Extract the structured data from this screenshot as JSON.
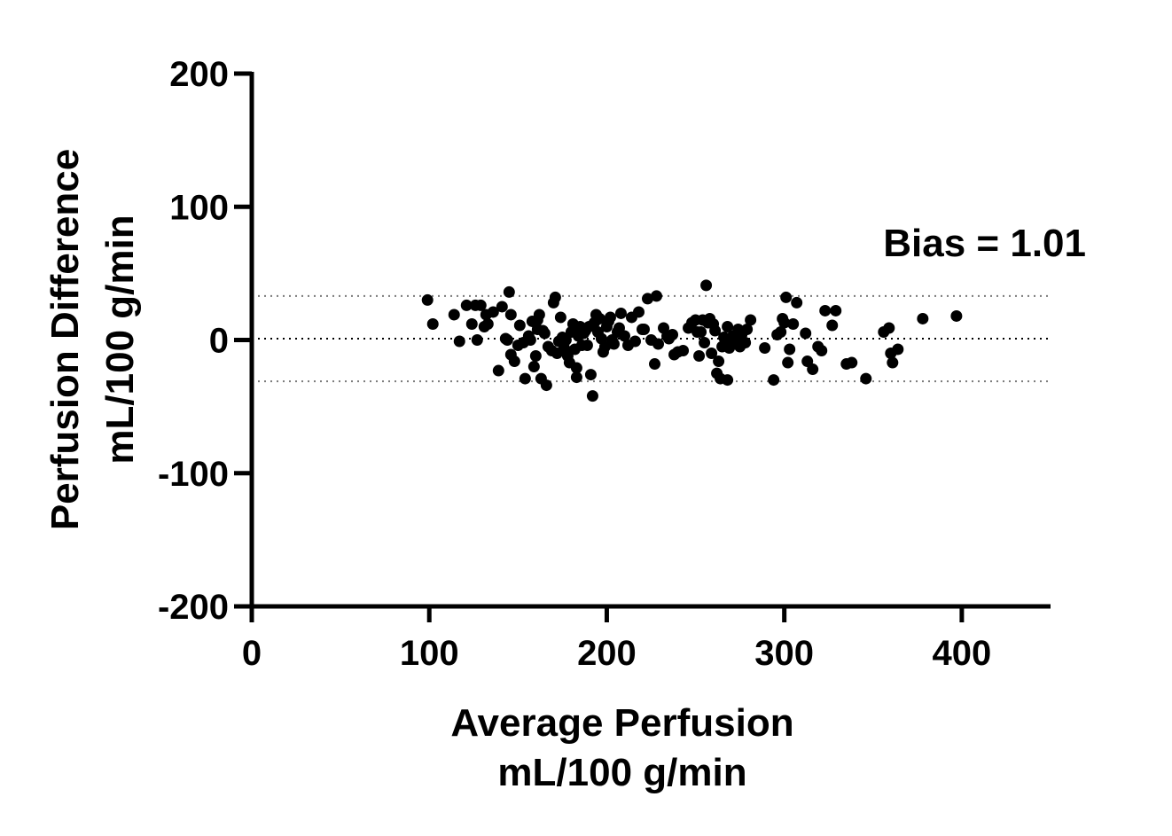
{
  "chart_data": {
    "type": "scatter",
    "xlabel_lines": [
      "Average Perfusion",
      "mL/100 g/min"
    ],
    "ylabel_lines": [
      "Perfusion Difference",
      "mL/100 g/min"
    ],
    "xlim": [
      0,
      450
    ],
    "ylim": [
      -200,
      200
    ],
    "x_ticks": [
      0,
      100,
      200,
      300,
      400
    ],
    "y_ticks": [
      200,
      100,
      0,
      -100,
      -200
    ],
    "x_tick_labels": [
      "0",
      "100",
      "200",
      "300",
      "400"
    ],
    "y_tick_labels": [
      "200",
      "100",
      "0",
      "-100",
      "-200"
    ],
    "grid": false,
    "annotation": "Bias = 1.01",
    "reference_lines": {
      "bias": 1.01,
      "upper_loa": 33,
      "lower_loa": -31
    },
    "points": [
      [
        99,
        30
      ],
      [
        102,
        12
      ],
      [
        114,
        19
      ],
      [
        117,
        -1
      ],
      [
        121,
        26
      ],
      [
        124,
        12
      ],
      [
        126,
        26
      ],
      [
        127,
        0
      ],
      [
        129,
        26
      ],
      [
        131,
        10
      ],
      [
        132,
        19
      ],
      [
        133,
        12
      ],
      [
        136,
        21
      ],
      [
        139,
        -23
      ],
      [
        141,
        25
      ],
      [
        143,
        1
      ],
      [
        144,
        0
      ],
      [
        145,
        36
      ],
      [
        146,
        19
      ],
      [
        146,
        -11
      ],
      [
        148,
        -16
      ],
      [
        150,
        -4
      ],
      [
        151,
        11
      ],
      [
        153,
        -2
      ],
      [
        154,
        -29
      ],
      [
        156,
        3
      ],
      [
        157,
        0
      ],
      [
        158,
        14
      ],
      [
        159,
        -20
      ],
      [
        160,
        -12
      ],
      [
        161,
        8
      ],
      [
        161,
        15
      ],
      [
        162,
        19
      ],
      [
        163,
        -29
      ],
      [
        164,
        7
      ],
      [
        165,
        5
      ],
      [
        166,
        -34
      ],
      [
        167,
        -5
      ],
      [
        169,
        -8
      ],
      [
        170,
        28
      ],
      [
        171,
        32
      ],
      [
        172,
        -10
      ],
      [
        173,
        -1
      ],
      [
        174,
        17
      ],
      [
        175,
        2
      ],
      [
        176,
        -6
      ],
      [
        177,
        0
      ],
      [
        178,
        -12
      ],
      [
        179,
        -17
      ],
      [
        180,
        6
      ],
      [
        181,
        12
      ],
      [
        182,
        -7
      ],
      [
        183,
        -21
      ],
      [
        183,
        -28
      ],
      [
        184,
        3
      ],
      [
        185,
        10
      ],
      [
        186,
        -4
      ],
      [
        187,
        5
      ],
      [
        188,
        7
      ],
      [
        189,
        -4
      ],
      [
        190,
        10
      ],
      [
        191,
        -26
      ],
      [
        192,
        -42
      ],
      [
        193,
        13
      ],
      [
        194,
        19
      ],
      [
        195,
        6
      ],
      [
        196,
        16
      ],
      [
        197,
        1
      ],
      [
        198,
        -9
      ],
      [
        199,
        -5
      ],
      [
        200,
        10
      ],
      [
        201,
        14
      ],
      [
        202,
        17
      ],
      [
        203,
        0
      ],
      [
        204,
        -3
      ],
      [
        206,
        6
      ],
      [
        207,
        9
      ],
      [
        208,
        20
      ],
      [
        210,
        3
      ],
      [
        212,
        -4
      ],
      [
        214,
        17
      ],
      [
        216,
        -1
      ],
      [
        218,
        21
      ],
      [
        220,
        8
      ],
      [
        221,
        8
      ],
      [
        223,
        31
      ],
      [
        225,
        0
      ],
      [
        227,
        -18
      ],
      [
        228,
        33
      ],
      [
        229,
        -3
      ],
      [
        232,
        9
      ],
      [
        234,
        3
      ],
      [
        235,
        1
      ],
      [
        237,
        4
      ],
      [
        238,
        -11
      ],
      [
        240,
        -9
      ],
      [
        243,
        -8
      ],
      [
        246,
        9
      ],
      [
        248,
        13
      ],
      [
        250,
        15
      ],
      [
        251,
        6
      ],
      [
        252,
        -12
      ],
      [
        253,
        6
      ],
      [
        254,
        15
      ],
      [
        255,
        -2
      ],
      [
        256,
        41
      ],
      [
        257,
        13
      ],
      [
        258,
        16
      ],
      [
        259,
        -10
      ],
      [
        260,
        12
      ],
      [
        261,
        7
      ],
      [
        262,
        -25
      ],
      [
        263,
        -16
      ],
      [
        264,
        -29
      ],
      [
        265,
        -5
      ],
      [
        266,
        2
      ],
      [
        267,
        -1
      ],
      [
        268,
        -30
      ],
      [
        268,
        10
      ],
      [
        269,
        -6
      ],
      [
        270,
        0
      ],
      [
        271,
        3
      ],
      [
        272,
        0
      ],
      [
        273,
        -2
      ],
      [
        274,
        8
      ],
      [
        275,
        -5
      ],
      [
        276,
        4
      ],
      [
        278,
        -2
      ],
      [
        279,
        8
      ],
      [
        281,
        15
      ],
      [
        289,
        -6
      ],
      [
        294,
        -30
      ],
      [
        296,
        4
      ],
      [
        298,
        6
      ],
      [
        299,
        16
      ],
      [
        300,
        13
      ],
      [
        301,
        32
      ],
      [
        302,
        -17
      ],
      [
        303,
        -7
      ],
      [
        305,
        12
      ],
      [
        307,
        28
      ],
      [
        312,
        5
      ],
      [
        313,
        -16
      ],
      [
        316,
        -22
      ],
      [
        319,
        -5
      ],
      [
        321,
        -8
      ],
      [
        323,
        22
      ],
      [
        327,
        11
      ],
      [
        329,
        22
      ],
      [
        335,
        -18
      ],
      [
        338,
        -17
      ],
      [
        346,
        -29
      ],
      [
        356,
        6
      ],
      [
        359,
        9
      ],
      [
        360,
        -10
      ],
      [
        361,
        -17
      ],
      [
        364,
        -7
      ],
      [
        378,
        16
      ],
      [
        397,
        18
      ]
    ]
  }
}
